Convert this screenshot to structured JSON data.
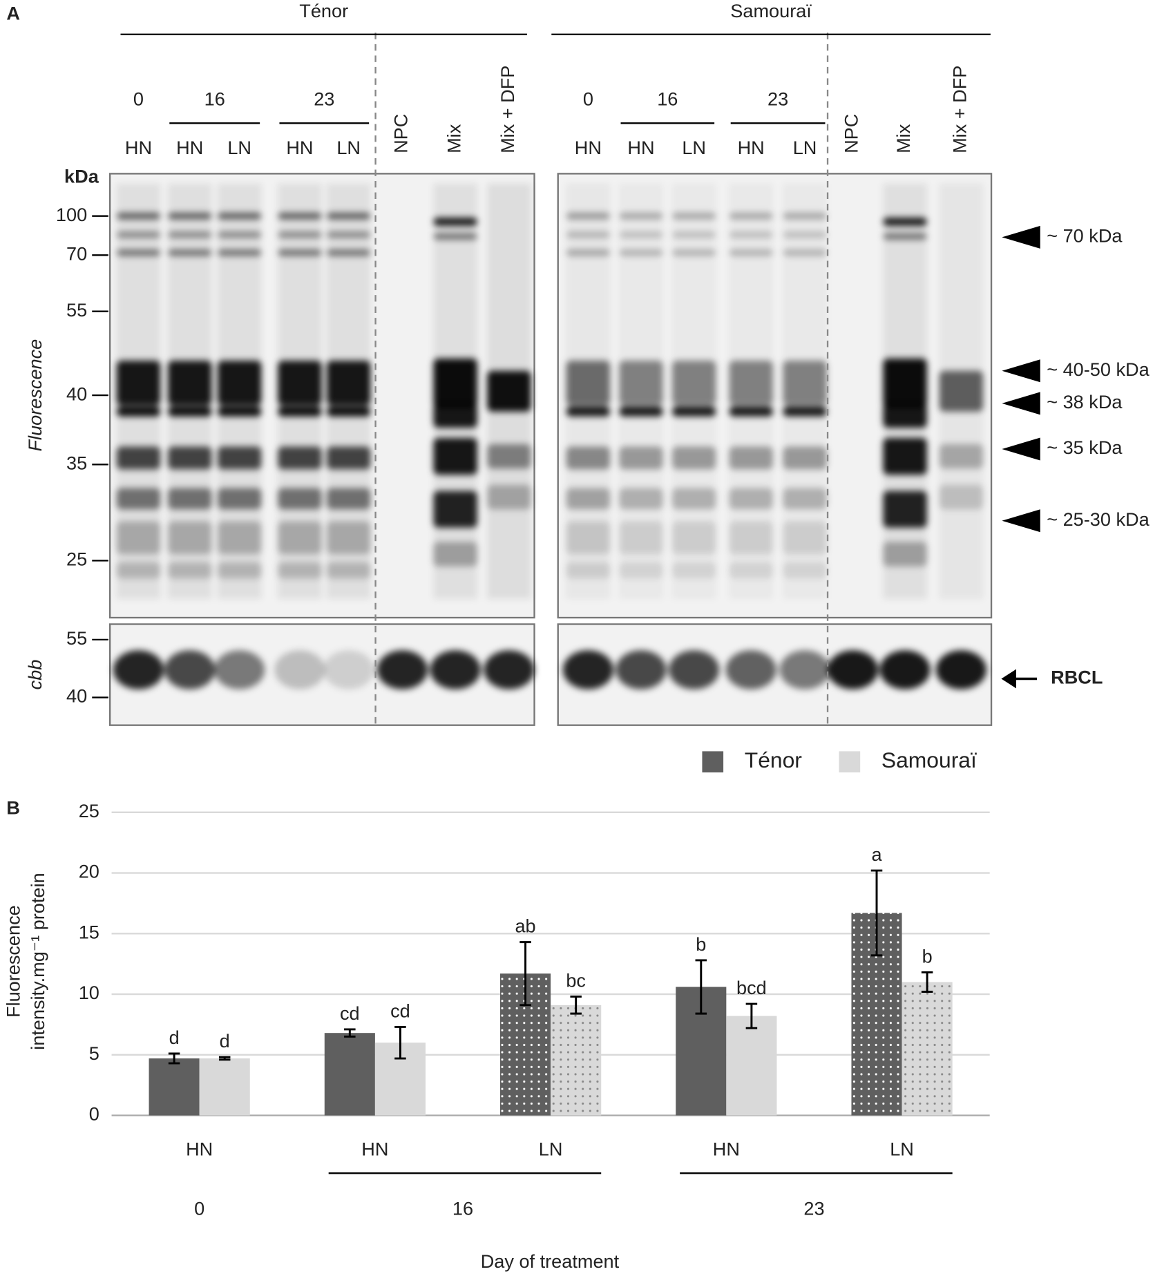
{
  "panel_a": {
    "label": "A",
    "cultivars": [
      {
        "name": "Ténor",
        "days": [
          {
            "label": "0",
            "lanes": [
              "HN"
            ]
          },
          {
            "label": "16",
            "lanes": [
              "HN",
              "LN"
            ]
          },
          {
            "label": "23",
            "lanes": [
              "HN",
              "LN"
            ]
          }
        ],
        "controls": [
          "NPC",
          "Mix",
          "Mix + DFP"
        ]
      },
      {
        "name": "Samouraï",
        "days": [
          {
            "label": "0",
            "lanes": [
              "HN"
            ]
          },
          {
            "label": "16",
            "lanes": [
              "HN",
              "LN"
            ]
          },
          {
            "label": "23",
            "lanes": [
              "HN",
              "LN"
            ]
          }
        ],
        "controls": [
          "NPC",
          "Mix",
          "Mix + DFP"
        ]
      }
    ],
    "kda_label": "kDa",
    "fluorescence_markers": [
      100,
      70,
      55,
      40,
      35,
      25
    ],
    "cbb_markers": [
      55,
      40
    ],
    "fluorescence_label": "Fluorescence",
    "cbb_label": "cbb",
    "band_annotations": [
      "~ 70 kDa",
      "~ 40-50 kDa",
      "~ 38 kDa",
      "~ 35 kDa",
      "~ 25-30 kDa"
    ],
    "rbcl_label": "RBCL"
  },
  "panel_b": {
    "label": "B"
  },
  "chart_data": {
    "type": "bar",
    "ylabel": [
      "Fluorescence",
      "intensity.mg⁻¹ protein"
    ],
    "xlabel": "Day of treatment",
    "groups": [
      {
        "name": "0",
        "categories": [
          "HN"
        ]
      },
      {
        "name": "16",
        "categories": [
          "HN",
          "LN"
        ]
      },
      {
        "name": "23",
        "categories": [
          "HN",
          "LN"
        ]
      }
    ],
    "series": [
      {
        "name": "Ténor",
        "color": "#5f5f5f",
        "values": [
          4.7,
          6.8,
          11.7,
          10.6,
          16.7
        ],
        "errors": [
          0.4,
          0.3,
          2.6,
          2.2,
          3.5
        ],
        "letters": [
          "d",
          "cd",
          "ab",
          "b",
          "a"
        ]
      },
      {
        "name": "Samouraï",
        "color": "#d9d9d9",
        "values": [
          4.7,
          6.0,
          9.1,
          8.2,
          11.0
        ],
        "errors": [
          0.1,
          1.3,
          0.7,
          1.0,
          0.8
        ],
        "letters": [
          "d",
          "cd",
          "bc",
          "bcd",
          "b"
        ]
      }
    ],
    "dotted": [
      false,
      false,
      true,
      false,
      true
    ],
    "ylim": [
      0,
      25
    ],
    "yticks": [
      0,
      5,
      10,
      15,
      20,
      25
    ],
    "grid": true,
    "legend": "top-right"
  }
}
